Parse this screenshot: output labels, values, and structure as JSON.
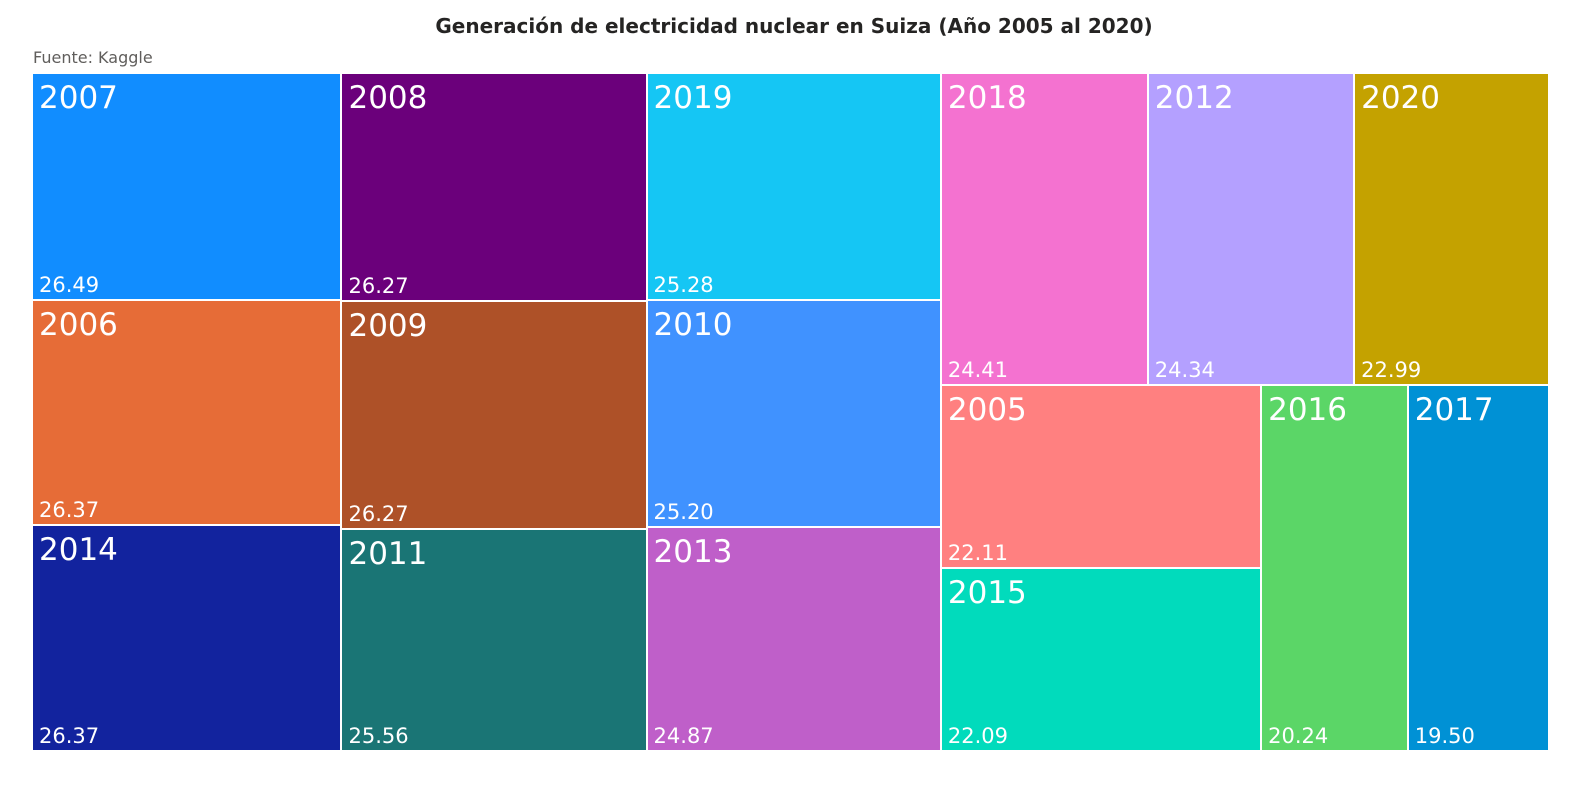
{
  "chart_data": {
    "type": "treemap",
    "title": "Generación de electricidad nuclear en Suiza (Año 2005 al 2020)",
    "subtitle": "Fuente: Kaggle",
    "items": [
      {
        "label": "2007",
        "value": 26.49,
        "value_label": "26.49",
        "color": "#118DFF"
      },
      {
        "label": "2006",
        "value": 26.37,
        "value_label": "26.37",
        "color": "#E66C37"
      },
      {
        "label": "2014",
        "value": 26.37,
        "value_label": "26.37",
        "color": "#12239E"
      },
      {
        "label": "2008",
        "value": 26.27,
        "value_label": "26.27",
        "color": "#6B007B"
      },
      {
        "label": "2009",
        "value": 26.27,
        "value_label": "26.27",
        "color": "#AE5128"
      },
      {
        "label": "2011",
        "value": 25.56,
        "value_label": "25.56",
        "color": "#1A7575"
      },
      {
        "label": "2019",
        "value": 25.28,
        "value_label": "25.28",
        "color": "#15C6F4"
      },
      {
        "label": "2010",
        "value": 25.2,
        "value_label": "25.20",
        "color": "#4092FF"
      },
      {
        "label": "2013",
        "value": 24.87,
        "value_label": "24.87",
        "color": "#BF5FC9"
      },
      {
        "label": "2018",
        "value": 24.41,
        "value_label": "24.41",
        "color": "#F472D0"
      },
      {
        "label": "2012",
        "value": 24.34,
        "value_label": "24.34",
        "color": "#B4A0FF"
      },
      {
        "label": "2020",
        "value": 22.99,
        "value_label": "22.99",
        "color": "#C4A200"
      },
      {
        "label": "2005",
        "value": 22.11,
        "value_label": "22.11",
        "color": "#FF8080"
      },
      {
        "label": "2015",
        "value": 22.09,
        "value_label": "22.09",
        "color": "#01DBBC"
      },
      {
        "label": "2016",
        "value": 20.24,
        "value_label": "20.24",
        "color": "#5BD667"
      },
      {
        "label": "2017",
        "value": 19.5,
        "value_label": "19.50",
        "color": "#0091D5"
      }
    ]
  }
}
